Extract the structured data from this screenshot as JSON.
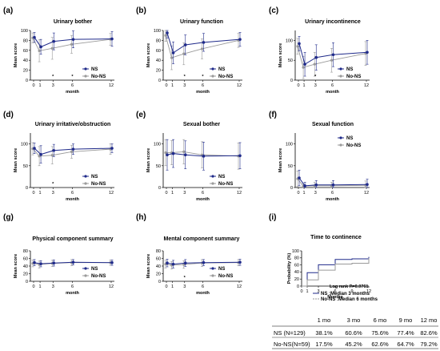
{
  "colors": {
    "ns": "#1f2a8a",
    "nons": "#9a9a9a",
    "axis": "#000000"
  },
  "legend": {
    "ns": "NS",
    "nons": "No-NS"
  },
  "chart_data": [
    {
      "type": "line",
      "panel": "(a)",
      "title": "Urinary bother",
      "xlabel": "month",
      "ylabel": "Mean score",
      "x": [
        0,
        1,
        3,
        6,
        12
      ],
      "xticks": [
        "0",
        "1",
        "3",
        "6",
        "12"
      ],
      "yticks": [
        "0",
        "20",
        "40",
        "60",
        "80",
        "100"
      ],
      "ylim": [
        0,
        100
      ],
      "series": [
        {
          "name": "NS",
          "values": [
            86,
            67,
            78,
            82,
            83
          ],
          "err": [
            10,
            15,
            17,
            17,
            15
          ]
        },
        {
          "name": "No-NS",
          "values": [
            85,
            59,
            64,
            72,
            82
          ],
          "err": [
            10,
            22,
            22,
            18,
            12
          ]
        }
      ],
      "significant_x": [
        3,
        6
      ],
      "marker": "*"
    },
    {
      "type": "line",
      "panel": "(b)",
      "title": "Urinary function",
      "xlabel": "month",
      "ylabel": "Mean score",
      "x": [
        0,
        1,
        3,
        6,
        12
      ],
      "xticks": [
        "0",
        "1",
        "3",
        "6",
        "12"
      ],
      "yticks": [
        "0",
        "20",
        "40",
        "60",
        "80",
        "100"
      ],
      "ylim": [
        0,
        100
      ],
      "series": [
        {
          "name": "NS",
          "values": [
            95,
            55,
            71,
            76,
            82
          ],
          "err": [
            10,
            22,
            20,
            18,
            14
          ]
        },
        {
          "name": "No-NS",
          "values": [
            90,
            45,
            53,
            63,
            80
          ],
          "err": [
            12,
            24,
            22,
            20,
            14
          ]
        }
      ],
      "significant_x": [
        3,
        6
      ],
      "marker": "*"
    },
    {
      "type": "line",
      "panel": "(c)",
      "title": "Urinary incontinence",
      "xlabel": "month",
      "ylabel": "Mean score",
      "x": [
        0,
        1,
        3,
        6,
        12
      ],
      "xticks": [
        "0",
        "1",
        "3",
        "6",
        "12"
      ],
      "yticks": [
        "0",
        "50",
        "100"
      ],
      "ylim": [
        0,
        125
      ],
      "series": [
        {
          "name": "NS",
          "values": [
            92,
            40,
            57,
            64,
            70
          ],
          "err": [
            18,
            30,
            32,
            30,
            30
          ]
        },
        {
          "name": "No-NS",
          "values": [
            85,
            32,
            40,
            50,
            67
          ],
          "err": [
            20,
            28,
            30,
            30,
            30
          ]
        }
      ],
      "significant_x": [
        3
      ],
      "marker": "*"
    },
    {
      "type": "line",
      "panel": "(d)",
      "title": "Urinary irritative/obstruction",
      "xlabel": "month",
      "ylabel": "Mean score",
      "x": [
        0,
        1,
        3,
        6,
        12
      ],
      "xticks": [
        "0",
        "1",
        "3",
        "6",
        "12"
      ],
      "yticks": [
        "0",
        "50",
        "100"
      ],
      "ylim": [
        0,
        125
      ],
      "series": [
        {
          "name": "NS",
          "values": [
            90,
            76,
            85,
            88,
            90
          ],
          "err": [
            12,
            20,
            14,
            12,
            10
          ]
        },
        {
          "name": "No-NS",
          "values": [
            89,
            72,
            74,
            82,
            88
          ],
          "err": [
            14,
            22,
            20,
            15,
            12
          ]
        }
      ],
      "significant_x": [
        3
      ],
      "marker": "*"
    },
    {
      "type": "line",
      "panel": "(e)",
      "title": "Sexual bother",
      "xlabel": "month",
      "ylabel": "Mean score",
      "x": [
        0,
        1,
        3,
        6,
        12
      ],
      "xticks": [
        "0",
        "1",
        "3",
        "6",
        "12"
      ],
      "yticks": [
        "0",
        "50",
        "100"
      ],
      "ylim": [
        0,
        125
      ],
      "series": [
        {
          "name": "NS",
          "values": [
            75,
            78,
            75,
            72,
            73
          ],
          "err": [
            35,
            32,
            32,
            32,
            30
          ]
        },
        {
          "name": "No-NS",
          "values": [
            80,
            80,
            82,
            75,
            72
          ],
          "err": [
            30,
            28,
            28,
            30,
            30
          ]
        }
      ],
      "significant_x": [],
      "marker": "*"
    },
    {
      "type": "line",
      "panel": "(f)",
      "title": "Sexual function",
      "xlabel": "month",
      "ylabel": "Mean score",
      "x": [
        0,
        1,
        3,
        6,
        12
      ],
      "xticks": [
        "0",
        "1",
        "3",
        "6",
        "12"
      ],
      "yticks": [
        "0",
        "50",
        "100"
      ],
      "ylim": [
        0,
        125
      ],
      "series": [
        {
          "name": "NS",
          "values": [
            22,
            4,
            6,
            6,
            7
          ],
          "err": [
            18,
            8,
            10,
            10,
            12
          ]
        },
        {
          "name": "No-NS",
          "values": [
            20,
            3,
            4,
            4,
            5
          ],
          "err": [
            18,
            6,
            8,
            8,
            10
          ]
        }
      ],
      "significant_x": [],
      "marker": "*"
    },
    {
      "type": "line",
      "panel": "(g)",
      "title": "Physical component summary",
      "xlabel": "month",
      "ylabel": "Mean score",
      "x": [
        0,
        1,
        3,
        6,
        12
      ],
      "xticks": [
        "0",
        "1",
        "3",
        "6",
        "12"
      ],
      "yticks": [
        "0",
        "20",
        "40",
        "60",
        "80"
      ],
      "ylim": [
        0,
        80
      ],
      "series": [
        {
          "name": "NS",
          "values": [
            49,
            46,
            48,
            50,
            49
          ],
          "err": [
            8,
            8,
            8,
            7,
            7
          ]
        },
        {
          "name": "No-NS",
          "values": [
            47,
            44,
            47,
            49,
            49
          ],
          "err": [
            9,
            9,
            8,
            8,
            7
          ]
        }
      ],
      "significant_x": [],
      "marker": "*"
    },
    {
      "type": "line",
      "panel": "(h)",
      "title": "Mental component summary",
      "xlabel": "month",
      "ylabel": "Mean score",
      "x": [
        0,
        1,
        3,
        6,
        12
      ],
      "xticks": [
        "0",
        "1",
        "3",
        "6",
        "12"
      ],
      "yticks": [
        "0",
        "20",
        "40",
        "60",
        "80"
      ],
      "ylim": [
        0,
        80
      ],
      "series": [
        {
          "name": "NS",
          "values": [
            48,
            45,
            48,
            49,
            50
          ],
          "err": [
            10,
            10,
            9,
            8,
            8
          ]
        },
        {
          "name": "No-NS",
          "values": [
            45,
            42,
            44,
            48,
            49
          ],
          "err": [
            10,
            10,
            10,
            9,
            8
          ]
        }
      ],
      "significant_x": [
        3
      ],
      "marker": "*"
    },
    {
      "type": "step",
      "panel": "(i)",
      "title": "Time to continence",
      "xlabel": "Months",
      "ylabel": "Probability (%)",
      "x": [
        0,
        1,
        3,
        6,
        9,
        12
      ],
      "xticks": [
        "0",
        "1",
        "3",
        "6",
        "9",
        "12"
      ],
      "yticks": [
        "0",
        "20",
        "40",
        "60",
        "80",
        "100"
      ],
      "ylim": [
        0,
        100
      ],
      "xlim": [
        0,
        12
      ],
      "series": [
        {
          "name": "NS",
          "label": "NS      :Median 3 months",
          "values": [
            0,
            38.1,
            60.6,
            75.6,
            77.4,
            82.6
          ]
        },
        {
          "name": "No-NS",
          "label": "No-NS :Median 6 months",
          "values": [
            0,
            17.5,
            45.2,
            62.6,
            64.7,
            79.2
          ]
        }
      ],
      "annotation": "Log rank P=0.0761"
    }
  ],
  "table": {
    "headers": [
      "1 mo",
      "3 mo",
      "6 mo",
      "9 mo",
      "12 mo"
    ],
    "rows": [
      {
        "label": "NS  (N=129)",
        "values": [
          "38.1%",
          "60.6%",
          "75.6%",
          "77.4%",
          "82.6%"
        ]
      },
      {
        "label": "No-NS(N=59)",
        "values": [
          "17.5%",
          "45.2%",
          "62.6%",
          "64.7%",
          "79.2%"
        ]
      }
    ]
  }
}
